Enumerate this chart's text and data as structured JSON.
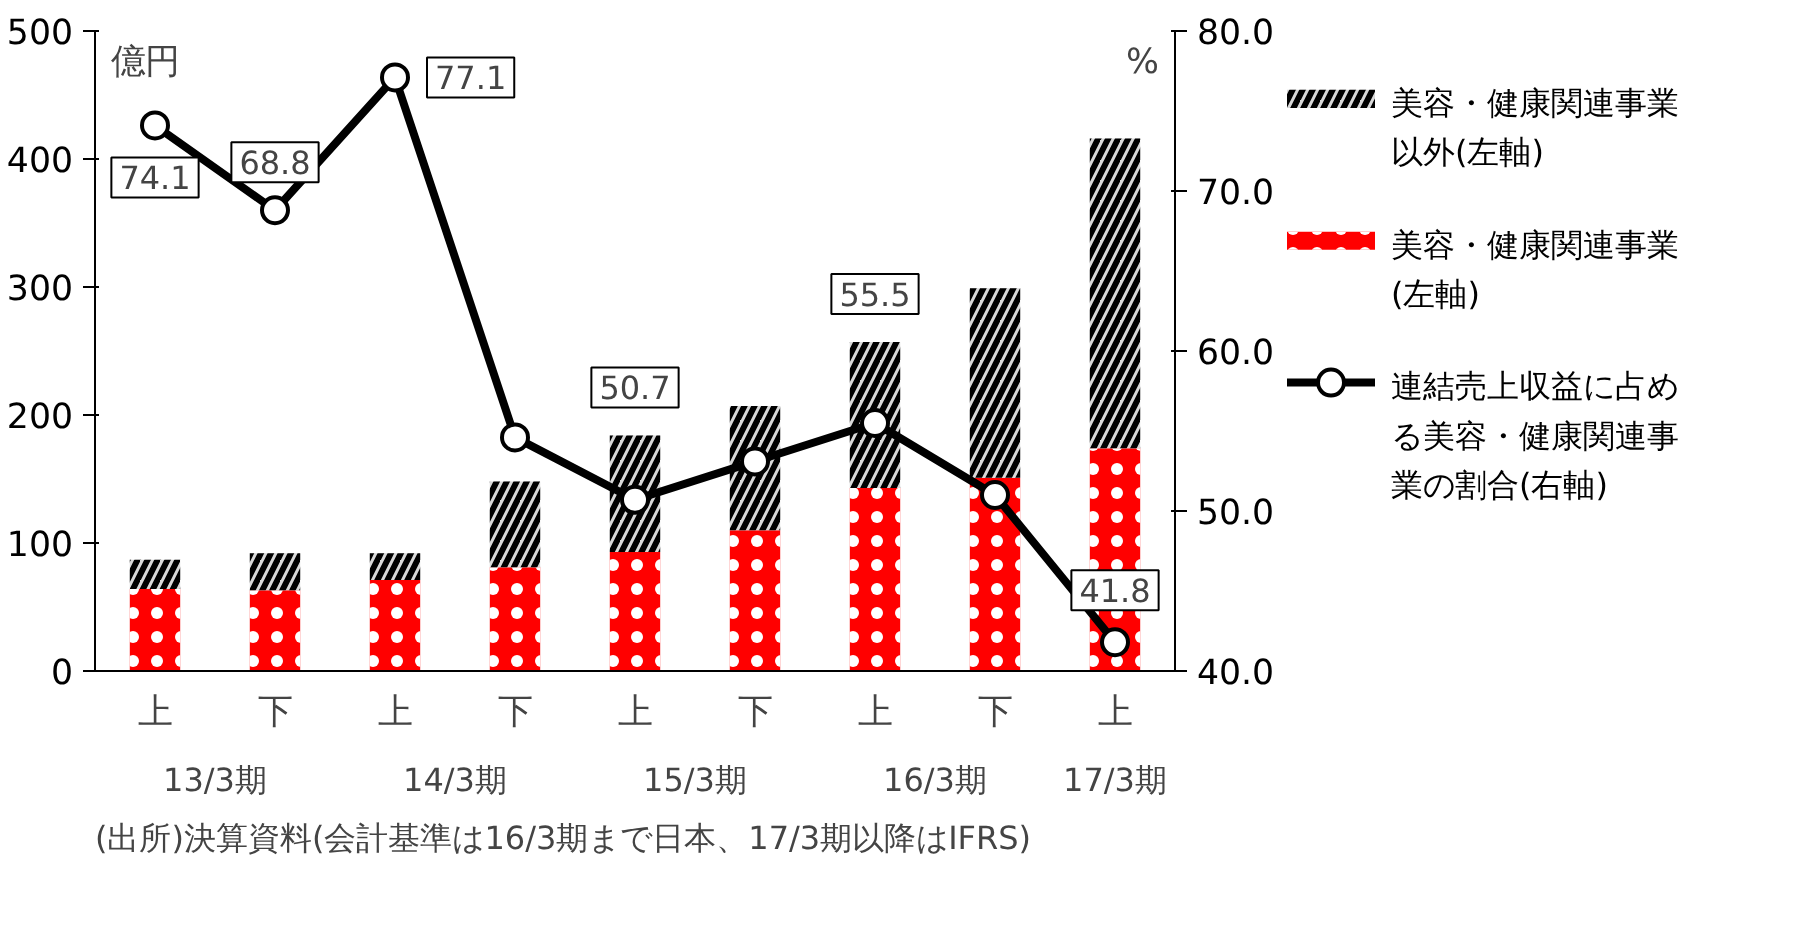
{
  "chart_data": {
    "type": "bar",
    "stacked": true,
    "categories": [
      "上",
      "下",
      "上",
      "下",
      "上",
      "下",
      "上",
      "下",
      "上"
    ],
    "series": [
      {
        "name": "美容・健康関連事業(左軸)",
        "color": "#ff0000",
        "values": [
          64,
          63,
          71,
          81,
          93,
          110,
          143,
          151,
          174
        ]
      },
      {
        "name": "美容・健康関連事業以外(左軸)",
        "color": "#d9d9d9",
        "values": [
          23,
          29,
          21,
          67,
          91,
          97,
          114,
          148,
          242
        ]
      },
      {
        "name": "連結売上収益に占める美容・健康関連事業の割合(右軸)",
        "type": "line",
        "axis": "y2",
        "color": "#000000",
        "marker": "circle",
        "values": [
          74.1,
          68.8,
          77.1,
          54.6,
          50.7,
          53.1,
          55.5,
          51.0,
          41.8
        ],
        "value_labels": [
          "74.1",
          "68.8",
          "77.1",
          null,
          "50.7",
          null,
          "55.5",
          null,
          "41.8"
        ]
      }
    ],
    "ylabel": "億円",
    "y2label": "%",
    "ylim": [
      0,
      500
    ],
    "yticks": [
      0,
      100,
      200,
      300,
      400,
      500
    ],
    "y2lim": [
      40,
      80
    ],
    "y2ticks": [
      {
        "value": 40,
        "label": "40.0"
      },
      {
        "value": 50,
        "label": "50.0"
      },
      {
        "value": 60,
        "label": "60.0"
      },
      {
        "value": 70,
        "label": "70.0"
      },
      {
        "value": 80,
        "label": "80.0"
      }
    ],
    "grid": false,
    "legend": "right",
    "annotations": [
      "13/3期",
      "14/3期",
      "15/3期",
      "16/3期",
      "17/3期",
      "(出所)決算資料(会計基準は16/3期まで日本、17/3期以降はIFRS)"
    ]
  }
}
